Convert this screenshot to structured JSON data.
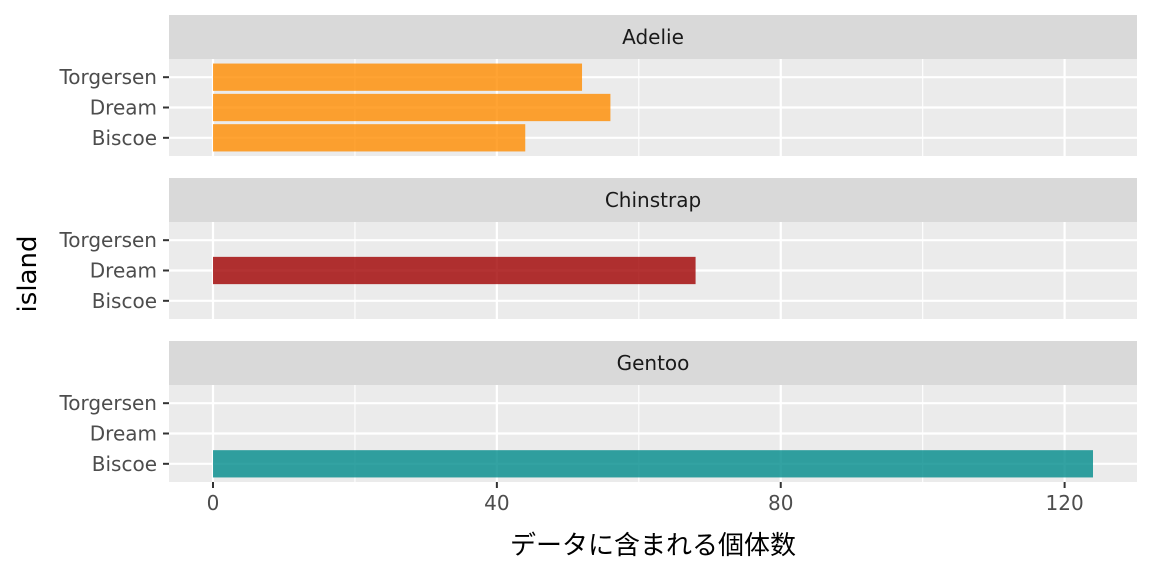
{
  "chart_data": {
    "type": "bar",
    "orientation": "horizontal",
    "facet_by": "species",
    "facets": [
      {
        "name": "Adelie",
        "color": "#FF8C00",
        "categories": [
          "Torgersen",
          "Dream",
          "Biscoe"
        ],
        "values": [
          52,
          56,
          44
        ]
      },
      {
        "name": "Chinstrap",
        "color": "#A00000",
        "categories": [
          "Torgersen",
          "Dream",
          "Biscoe"
        ],
        "values": [
          0,
          68,
          0
        ]
      },
      {
        "name": "Gentoo",
        "color": "#008B8B",
        "categories": [
          "Torgersen",
          "Dream",
          "Biscoe"
        ],
        "values": [
          0,
          0,
          124
        ]
      }
    ],
    "x_ticks": [
      0,
      40,
      80,
      120
    ],
    "xlim": [
      -6.2,
      130.2
    ],
    "xlabel": "データに含まれる個体数",
    "ylabel": "island",
    "grid": true,
    "legend": "none",
    "colors": {
      "panel_bg": "#EBEBEB",
      "strip_bg": "#D9D9D9",
      "grid": "#FFFFFF",
      "bar_alpha": 0.8
    }
  }
}
